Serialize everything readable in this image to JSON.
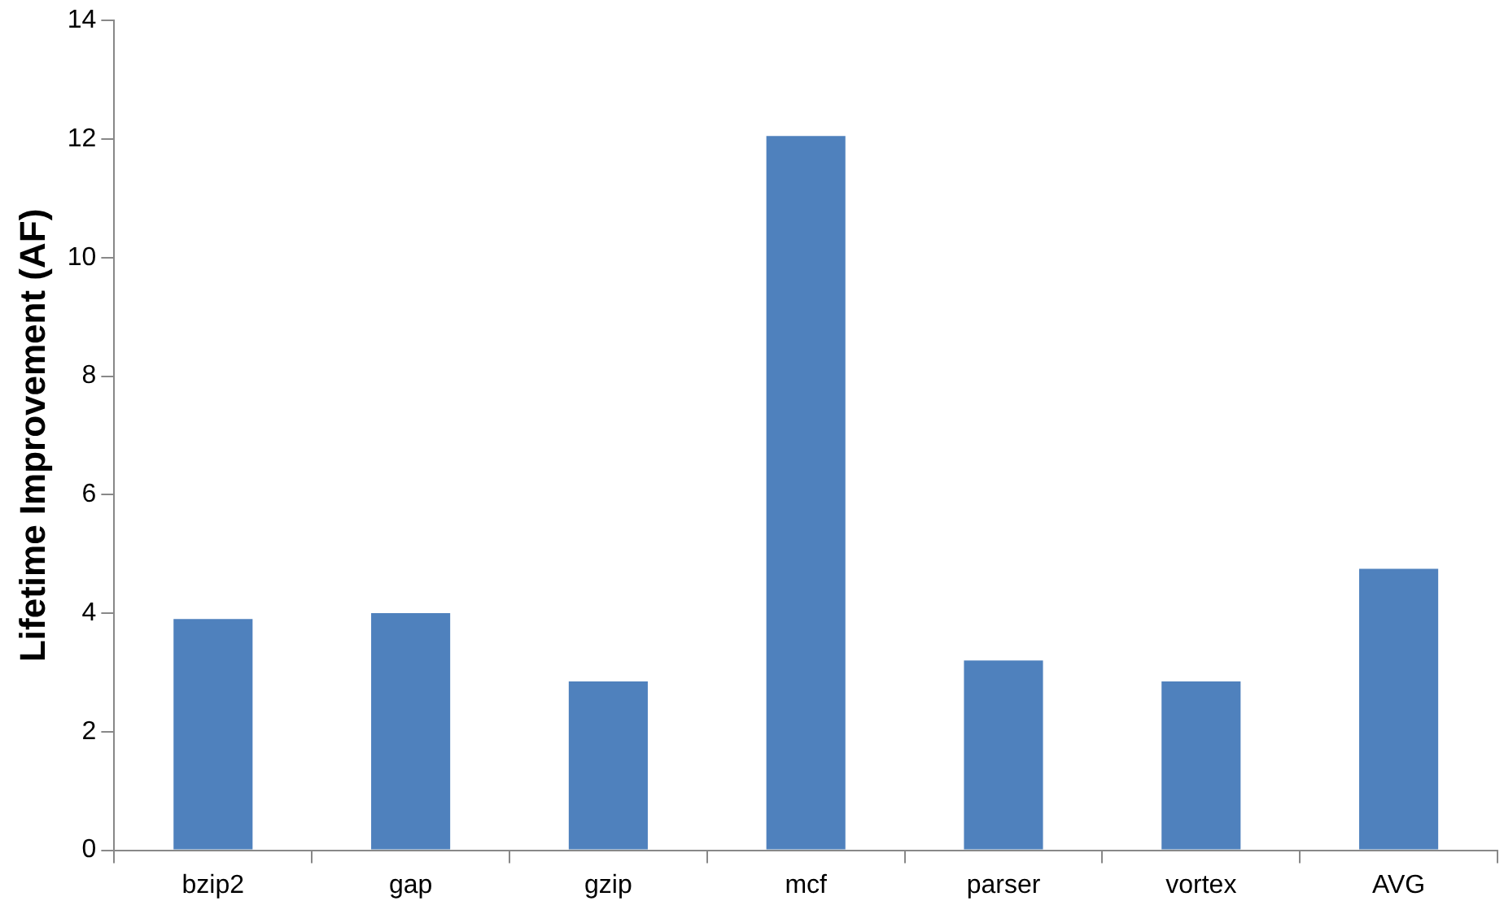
{
  "chart_data": {
    "type": "bar",
    "ylabel": "Lifetime Improvement (AF)",
    "categories": [
      "bzip2",
      "gap",
      "gzip",
      "mcf",
      "parser",
      "vortex",
      "AVG"
    ],
    "values": [
      3.9,
      4.0,
      2.85,
      12.05,
      3.2,
      2.85,
      4.75
    ],
    "color": "#4f81bd",
    "ylim": [
      0,
      14
    ],
    "yticks": [
      0,
      2,
      4,
      6,
      8,
      10,
      12,
      14
    ],
    "grid": false,
    "legend": false
  }
}
